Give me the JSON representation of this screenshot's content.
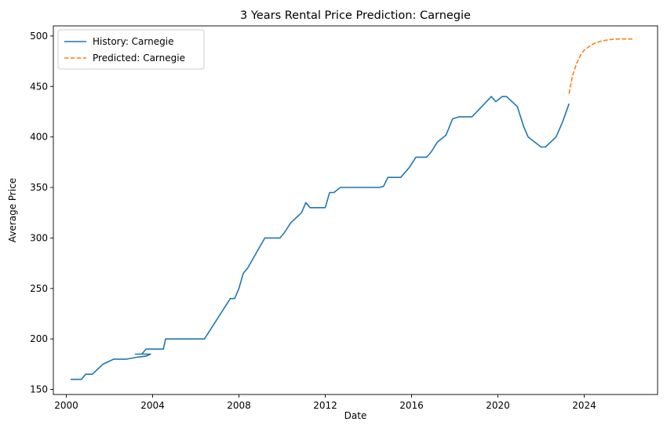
{
  "chart_data": {
    "type": "line",
    "title": "3 Years Rental Price Prediction: Carnegie",
    "xlabel": "Date",
    "ylabel": "Average Price",
    "xlim": [
      1999.4,
      2027.4
    ],
    "ylim": [
      145,
      510
    ],
    "x_ticks": [
      2000,
      2004,
      2008,
      2012,
      2016,
      2020,
      2024
    ],
    "y_ticks": [
      150,
      200,
      250,
      300,
      350,
      400,
      450,
      500
    ],
    "x_tick_labels": [
      "2000",
      "2004",
      "2008",
      "2012",
      "2016",
      "2020",
      "2024"
    ],
    "y_tick_labels": [
      "150",
      "200",
      "250",
      "300",
      "350",
      "400",
      "450",
      "500"
    ],
    "grid": false,
    "legend_position": "top-left",
    "series": [
      {
        "name": "History: Carnegie",
        "color": "#1f77b4",
        "style": "solid",
        "x": [
          2000.2,
          2000.7,
          2000.9,
          2001.2,
          2001.7,
          2002.0,
          2002.2,
          2002.8,
          2003.3,
          2003.7,
          2003.9,
          2003.2,
          2003.5,
          2003.7,
          2004.5,
          2004.6,
          2005.0,
          2006.4,
          2007.6,
          2007.8,
          2008.0,
          2008.2,
          2008.4,
          2009.2,
          2009.9,
          2010.1,
          2010.4,
          2010.9,
          2011.1,
          2011.3,
          2012.0,
          2012.2,
          2012.4,
          2012.7,
          2013.2,
          2014.5,
          2014.7,
          2014.9,
          2015.5,
          2015.9,
          2016.2,
          2016.7,
          2016.9,
          2017.2,
          2017.6,
          2017.9,
          2018.2,
          2018.8,
          2019.7,
          2019.9,
          2020.2,
          2020.4,
          2020.9,
          2021.2,
          2021.4,
          2022.0,
          2022.2,
          2022.7,
          2023.0,
          2023.3
        ],
        "y": [
          160,
          160,
          165,
          165,
          175,
          178,
          180,
          180,
          182,
          183,
          185,
          185,
          185,
          190,
          190,
          200,
          200,
          200,
          240,
          240,
          250,
          265,
          270,
          300,
          300,
          305,
          315,
          325,
          335,
          330,
          330,
          345,
          345,
          350,
          350,
          350,
          351,
          360,
          360,
          370,
          380,
          380,
          385,
          395,
          402,
          418,
          420,
          420,
          440,
          435,
          440,
          440,
          430,
          410,
          400,
          390,
          390,
          400,
          415,
          433
        ]
      },
      {
        "name": "Predicted: Carnegie",
        "color": "#ff7f0e",
        "style": "dashed",
        "x": [
          2023.3,
          2023.45,
          2023.6,
          2023.8,
          2024.0,
          2024.25,
          2024.5,
          2024.8,
          2025.2,
          2025.6,
          2026.0,
          2026.3
        ],
        "y": [
          443,
          460,
          470,
          480,
          486,
          490,
          493,
          495,
          496.5,
          497,
          497,
          497
        ]
      }
    ]
  }
}
